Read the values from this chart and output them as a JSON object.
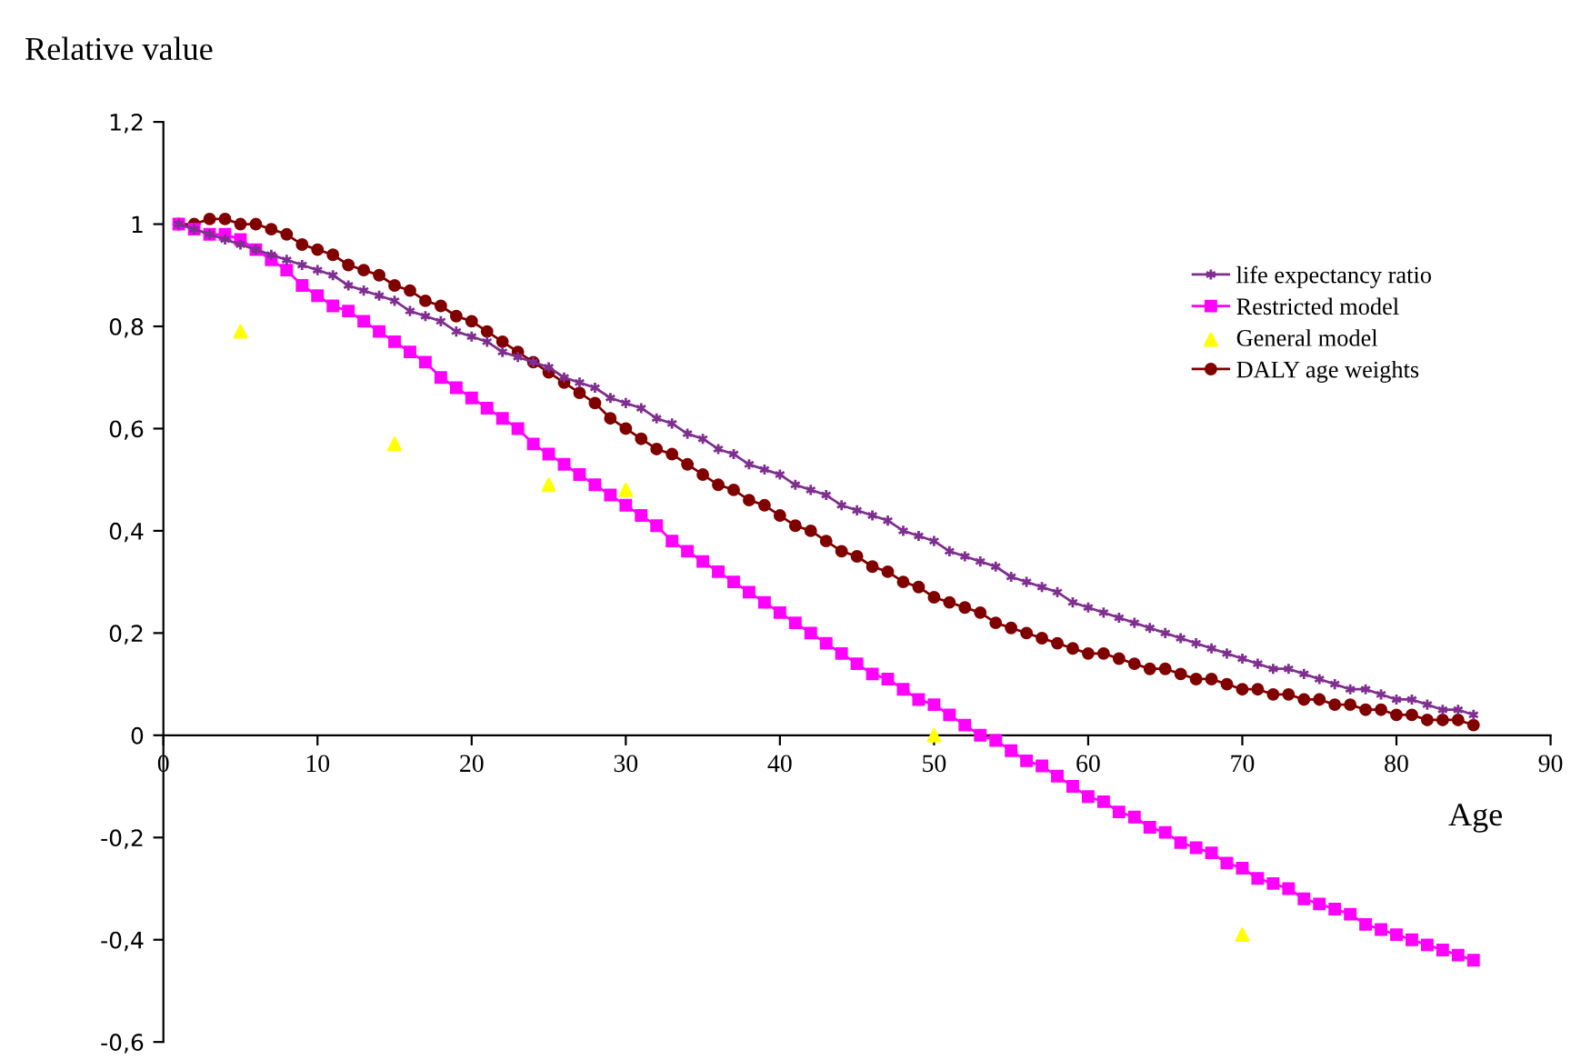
{
  "chart_data": {
    "type": "line",
    "ylabel": "Relative value",
    "xlabel": "Age",
    "x": [
      1,
      2,
      3,
      4,
      5,
      6,
      7,
      8,
      9,
      10,
      11,
      12,
      13,
      14,
      15,
      16,
      17,
      18,
      19,
      20,
      21,
      22,
      23,
      24,
      25,
      26,
      27,
      28,
      29,
      30,
      31,
      32,
      33,
      34,
      35,
      36,
      37,
      38,
      39,
      40,
      41,
      42,
      43,
      44,
      45,
      46,
      47,
      48,
      49,
      50,
      51,
      52,
      53,
      54,
      55,
      56,
      57,
      58,
      59,
      60,
      61,
      62,
      63,
      64,
      65,
      66,
      67,
      68,
      69,
      70,
      71,
      72,
      73,
      74,
      75,
      76,
      77,
      78,
      79,
      80,
      81,
      82,
      83,
      84,
      85
    ],
    "series": [
      {
        "name": "life expectancy ratio",
        "color": "#7f2f8f",
        "marker": "cross",
        "values": [
          1.0,
          0.99,
          0.98,
          0.97,
          0.96,
          0.95,
          0.94,
          0.93,
          0.92,
          0.91,
          0.9,
          0.88,
          0.87,
          0.86,
          0.85,
          0.83,
          0.82,
          0.81,
          0.79,
          0.78,
          0.77,
          0.75,
          0.74,
          0.73,
          0.72,
          0.7,
          0.69,
          0.68,
          0.66,
          0.65,
          0.64,
          0.62,
          0.61,
          0.59,
          0.58,
          0.56,
          0.55,
          0.53,
          0.52,
          0.51,
          0.49,
          0.48,
          0.47,
          0.45,
          0.44,
          0.43,
          0.42,
          0.4,
          0.39,
          0.38,
          0.36,
          0.35,
          0.34,
          0.33,
          0.31,
          0.3,
          0.29,
          0.28,
          0.26,
          0.25,
          0.24,
          0.23,
          0.22,
          0.21,
          0.2,
          0.19,
          0.18,
          0.17,
          0.16,
          0.15,
          0.14,
          0.13,
          0.13,
          0.12,
          0.11,
          0.1,
          0.09,
          0.09,
          0.08,
          0.07,
          0.07,
          0.06,
          0.05,
          0.05,
          0.04
        ]
      },
      {
        "name": "Restricted model",
        "color": "#ff00ff",
        "marker": "square",
        "values": [
          1.0,
          0.99,
          0.98,
          0.98,
          0.97,
          0.95,
          0.93,
          0.91,
          0.88,
          0.86,
          0.84,
          0.83,
          0.81,
          0.79,
          0.77,
          0.75,
          0.73,
          0.7,
          0.68,
          0.66,
          0.64,
          0.62,
          0.6,
          0.57,
          0.55,
          0.53,
          0.51,
          0.49,
          0.47,
          0.45,
          0.43,
          0.41,
          0.38,
          0.36,
          0.34,
          0.32,
          0.3,
          0.28,
          0.26,
          0.24,
          0.22,
          0.2,
          0.18,
          0.16,
          0.14,
          0.12,
          0.11,
          0.09,
          0.07,
          0.06,
          0.04,
          0.02,
          0.0,
          -0.01,
          -0.03,
          -0.05,
          -0.06,
          -0.08,
          -0.1,
          -0.12,
          -0.13,
          -0.15,
          -0.16,
          -0.18,
          -0.19,
          -0.21,
          -0.22,
          -0.23,
          -0.25,
          -0.26,
          -0.28,
          -0.29,
          -0.3,
          -0.32,
          -0.33,
          -0.34,
          -0.35,
          -0.37,
          -0.38,
          -0.39,
          -0.4,
          -0.41,
          -0.42,
          -0.43,
          -0.44
        ]
      },
      {
        "name": "General model",
        "color": "#ffff00",
        "marker": "triangle",
        "type": "scatter",
        "x": [
          5,
          15,
          25,
          30,
          50,
          70
        ],
        "values": [
          0.79,
          0.57,
          0.49,
          0.48,
          0.0,
          -0.39
        ]
      },
      {
        "name": "DALY age weights",
        "color": "#800000",
        "marker": "circle",
        "values": [
          1.0,
          1.0,
          1.01,
          1.01,
          1.0,
          1.0,
          0.99,
          0.98,
          0.96,
          0.95,
          0.94,
          0.92,
          0.91,
          0.9,
          0.88,
          0.87,
          0.85,
          0.84,
          0.82,
          0.81,
          0.79,
          0.77,
          0.75,
          0.73,
          0.71,
          0.69,
          0.67,
          0.65,
          0.62,
          0.6,
          0.58,
          0.56,
          0.55,
          0.53,
          0.51,
          0.49,
          0.48,
          0.46,
          0.45,
          0.43,
          0.41,
          0.4,
          0.38,
          0.36,
          0.35,
          0.33,
          0.32,
          0.3,
          0.29,
          0.27,
          0.26,
          0.25,
          0.24,
          0.22,
          0.21,
          0.2,
          0.19,
          0.18,
          0.17,
          0.16,
          0.16,
          0.15,
          0.14,
          0.13,
          0.13,
          0.12,
          0.11,
          0.11,
          0.1,
          0.09,
          0.09,
          0.08,
          0.08,
          0.07,
          0.07,
          0.06,
          0.06,
          0.05,
          0.05,
          0.04,
          0.04,
          0.03,
          0.03,
          0.03,
          0.02
        ]
      }
    ],
    "xlim": [
      0,
      90
    ],
    "xticks": [
      0,
      10,
      20,
      30,
      40,
      50,
      60,
      70,
      80,
      90
    ],
    "ylim": [
      -0.6,
      1.2
    ],
    "yticks": [
      {
        "value": -0.6,
        "label": "-0,6"
      },
      {
        "value": -0.4,
        "label": "-0,4"
      },
      {
        "value": -0.2,
        "label": "-0,2"
      },
      {
        "value": 0,
        "label": "0"
      },
      {
        "value": 0.2,
        "label": "0,2"
      },
      {
        "value": 0.4,
        "label": "0,4"
      },
      {
        "value": 0.6,
        "label": "0,6"
      },
      {
        "value": 0.8,
        "label": "0,8"
      },
      {
        "value": 1,
        "label": "1"
      },
      {
        "value": 1.2,
        "label": "1,2"
      }
    ],
    "grid": false,
    "legend": "right"
  }
}
